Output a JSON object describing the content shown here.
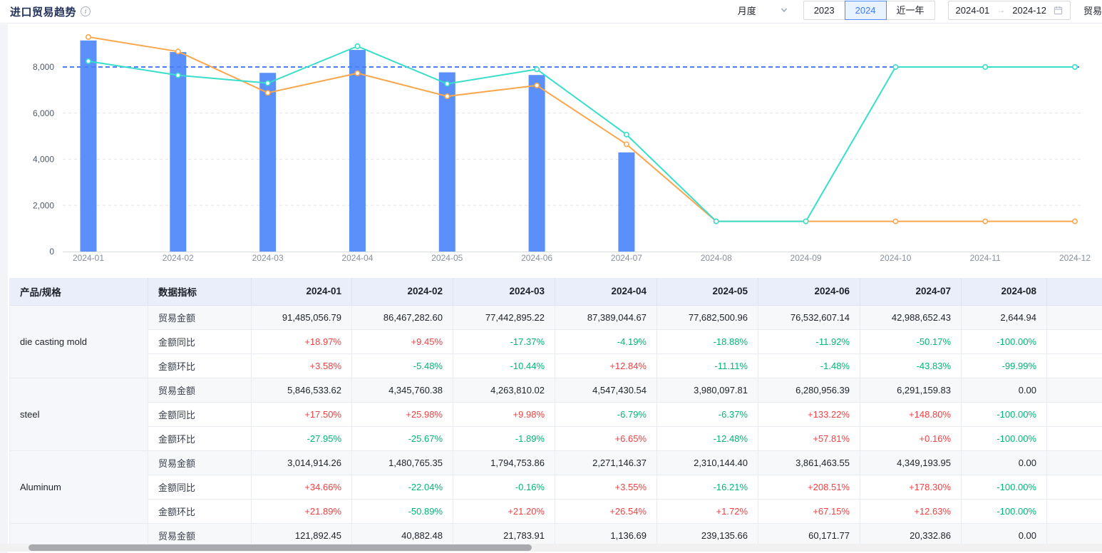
{
  "header": {
    "title": "进口贸易趋势",
    "controls": {
      "granularity_label": "月度",
      "segments": [
        "2023",
        "2024",
        "近一年"
      ],
      "active_segment": "2024",
      "date_start": "2024-01",
      "date_end": "2024-12",
      "trailing_partial_label": "贸易"
    }
  },
  "colors": {
    "bar": "#5B8FF9",
    "line_orange": "#F9A64C",
    "line_teal": "#38DECA",
    "markline": "#4D7DF9",
    "positive": "#F04142",
    "negative": "#00B578",
    "active_button": "#3B7BFF"
  },
  "chart_data": {
    "type": "combo",
    "x": [
      "2024-01",
      "2024-02",
      "2024-03",
      "2024-04",
      "2024-05",
      "2024-06",
      "2024-07",
      "2024-08",
      "2024-09",
      "2024-10",
      "2024-11",
      "2024-12"
    ],
    "series": [
      {
        "name": "trade-amount-bar",
        "type": "bar",
        "color": "#5B8FF9",
        "values": [
          9148.5,
          8646.7,
          7744.3,
          8738.9,
          7768.3,
          7653.3,
          4298.9,
          0,
          0,
          0,
          0,
          0
        ]
      },
      {
        "name": "trend-line-orange",
        "type": "line",
        "color": "#F9A64C",
        "values": [
          9300,
          8670,
          6880,
          7730,
          6730,
          7200,
          4650,
          1310,
          1310,
          1310,
          1310,
          1310
        ]
      },
      {
        "name": "trend-line-teal",
        "type": "line",
        "color": "#38DECA",
        "values": [
          8250,
          7640,
          7300,
          8900,
          7270,
          7900,
          5070,
          1310,
          1310,
          8000,
          8000,
          8000
        ]
      }
    ],
    "ylim": [
      0,
      9600
    ],
    "yticks": [
      0,
      2000,
      4000,
      6000,
      8000
    ],
    "ytick_labels": [
      "0",
      "2,000",
      "4,000",
      "6,000",
      "8,000"
    ],
    "markline": {
      "value": 8000,
      "color": "#4D7DF9",
      "style": "dashed"
    },
    "grid": true,
    "legend": "none"
  },
  "table": {
    "columns": [
      "产品/规格",
      "数据指标",
      "2024-01",
      "2024-02",
      "2024-03",
      "2024-04",
      "2024-05",
      "2024-06",
      "2024-07",
      "2024-08"
    ],
    "products": [
      {
        "name": "die casting mold",
        "rows": [
          {
            "label": "贸易金额",
            "kind": "amount",
            "values": [
              "91,485,056.79",
              "86,467,282.60",
              "77,442,895.22",
              "87,389,044.67",
              "77,682,500.96",
              "76,532,607.14",
              "42,988,652.43",
              "2,644.94"
            ]
          },
          {
            "label": "金额同比",
            "kind": "percent",
            "values": [
              "+18.97%",
              "+9.45%",
              "-17.37%",
              "-4.19%",
              "-18.88%",
              "-11.92%",
              "-50.17%",
              "-100.00%"
            ]
          },
          {
            "label": "金额环比",
            "kind": "percent",
            "values": [
              "+3.58%",
              "-5.48%",
              "-10.44%",
              "+12.84%",
              "-11.11%",
              "-1.48%",
              "-43.83%",
              "-99.99%"
            ]
          }
        ]
      },
      {
        "name": "steel",
        "rows": [
          {
            "label": "贸易金额",
            "kind": "amount",
            "values": [
              "5,846,533.62",
              "4,345,760.38",
              "4,263,810.02",
              "4,547,430.54",
              "3,980,097.81",
              "6,280,956.39",
              "6,291,159.83",
              "0.00"
            ]
          },
          {
            "label": "金额同比",
            "kind": "percent",
            "values": [
              "+17.50%",
              "+25.98%",
              "+9.98%",
              "-6.79%",
              "-6.37%",
              "+133.22%",
              "+148.80%",
              "-100.00%"
            ]
          },
          {
            "label": "金额环比",
            "kind": "percent",
            "values": [
              "-27.95%",
              "-25.67%",
              "-1.89%",
              "+6.65%",
              "-12.48%",
              "+57.81%",
              "+0.16%",
              "-100.00%"
            ]
          }
        ]
      },
      {
        "name": "Aluminum",
        "rows": [
          {
            "label": "贸易金额",
            "kind": "amount",
            "values": [
              "3,014,914.26",
              "1,480,765.35",
              "1,794,753.86",
              "2,271,146.37",
              "2,310,144.40",
              "3,861,463.55",
              "4,349,193.95",
              "0.00"
            ]
          },
          {
            "label": "金额同比",
            "kind": "percent",
            "values": [
              "+34.66%",
              "-22.04%",
              "-0.16%",
              "+3.55%",
              "-16.21%",
              "+208.51%",
              "+178.30%",
              "-100.00%"
            ]
          },
          {
            "label": "金额环比",
            "kind": "percent",
            "values": [
              "+21.89%",
              "-50.89%",
              "+21.20%",
              "+26.54%",
              "+1.72%",
              "+67.15%",
              "+12.63%",
              "-100.00%"
            ]
          }
        ]
      },
      {
        "name": "",
        "rows": [
          {
            "label": "贸易金额",
            "kind": "amount",
            "values": [
              "121,892.45",
              "40,882.48",
              "21,783.91",
              "1,136.69",
              "239,135.66",
              "60,171.77",
              "20,332.86",
              "0.00"
            ]
          }
        ]
      }
    ]
  }
}
